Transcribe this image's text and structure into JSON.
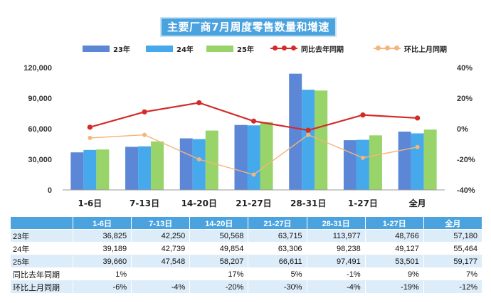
{
  "chart_data": {
    "type": "bar",
    "title": "主要厂商7月周度零售数量和增速",
    "categories": [
      "1-6日",
      "7-13日",
      "14-20日",
      "21-27日",
      "28-31日",
      "1-27日",
      "全月"
    ],
    "series": [
      {
        "name": "23年",
        "color": "#5b87d6",
        "values": [
          36825,
          42250,
          50568,
          63715,
          113977,
          48766,
          57180
        ]
      },
      {
        "name": "24年",
        "color": "#45a9ec",
        "values": [
          39189,
          42739,
          49854,
          63306,
          98238,
          49127,
          55464
        ]
      },
      {
        "name": "25年",
        "color": "#98d46a",
        "values": [
          39660,
          47548,
          58207,
          66611,
          97491,
          53501,
          59177
        ]
      }
    ],
    "lines": [
      {
        "name": "同比去年同期",
        "color": "#d42a2a",
        "values": [
          1,
          11,
          17,
          5,
          -1,
          9,
          7
        ]
      },
      {
        "name": "环比上月同期",
        "color": "#f5b57a",
        "values": [
          -6,
          -4,
          -20,
          -30,
          -4,
          -19,
          -12
        ]
      }
    ],
    "left_axis": {
      "min": 0,
      "max": 120000,
      "ticks": [
        "0",
        "30,000",
        "60,000",
        "90,000",
        "120,000"
      ]
    },
    "right_axis": {
      "min": -40,
      "max": 40,
      "ticks": [
        "-40%",
        "-20%",
        "0%",
        "20%",
        "40%"
      ]
    }
  },
  "table": {
    "header": [
      "1-6日",
      "7-13日",
      "14-20日",
      "21-27日",
      "28-31日",
      "1-27日",
      "全月"
    ],
    "rows": [
      {
        "label": "23年",
        "cells": [
          "36,825",
          "42,250",
          "50,568",
          "63,715",
          "113,977",
          "48,766",
          "57,180"
        ]
      },
      {
        "label": "24年",
        "cells": [
          "39,189",
          "42,739",
          "49,854",
          "63,306",
          "98,238",
          "49,127",
          "55,464"
        ]
      },
      {
        "label": "25年",
        "cells": [
          "39,660",
          "47,548",
          "58,207",
          "66,611",
          "97,491",
          "53,501",
          "59,177"
        ]
      },
      {
        "label": "同比去年同期",
        "cells": [
          "1%",
          "",
          "17%",
          "5%",
          "-1%",
          "9%",
          "7%"
        ]
      },
      {
        "label": "环比上月同期",
        "cells": [
          "-6%",
          "-4%",
          "-20%",
          "-30%",
          "-4%",
          "-19%",
          "-12%"
        ]
      }
    ]
  }
}
